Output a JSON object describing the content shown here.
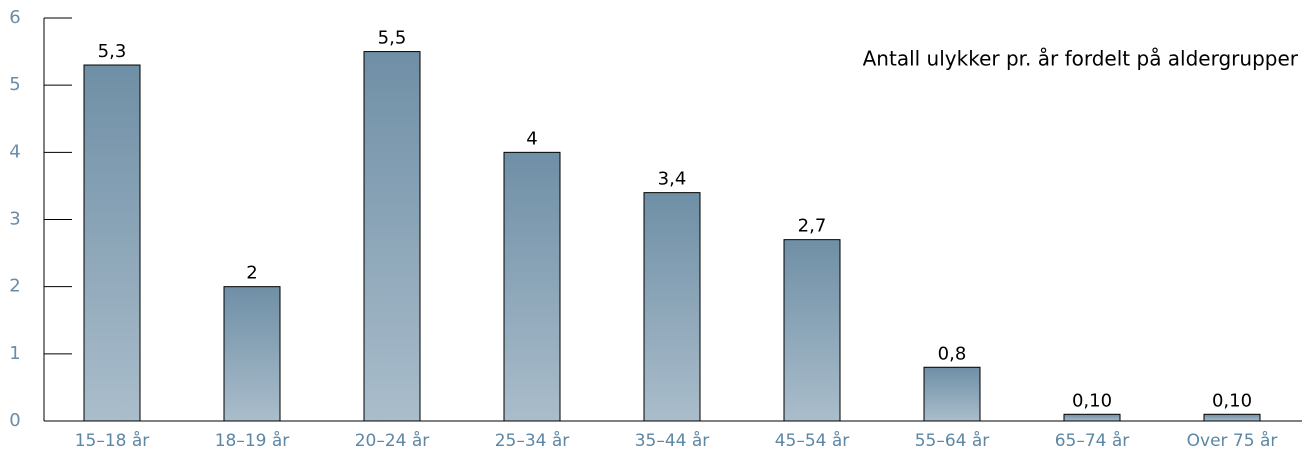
{
  "chart_data": {
    "type": "bar",
    "title": "Antall ulykker pr. år fordelt på aldergrupper",
    "categories": [
      "15–18 år",
      "18–19 år",
      "20–24 år",
      "25–34 år",
      "35–44 år",
      "45–54 år",
      "55–64 år",
      "65–74 år",
      "Over 75 år"
    ],
    "values": [
      5.3,
      2,
      5.5,
      4,
      3.4,
      2.7,
      0.8,
      0.1,
      0.1
    ],
    "value_labels": [
      "5,3",
      "2",
      "5,5",
      "4",
      "3,4",
      "2,7",
      "0,8",
      "0,10",
      "0,10"
    ],
    "color": "#7f9cb2",
    "ylim": [
      0,
      6
    ],
    "yticks": [
      0,
      1,
      2,
      3,
      4,
      5,
      6
    ],
    "grid": false
  }
}
